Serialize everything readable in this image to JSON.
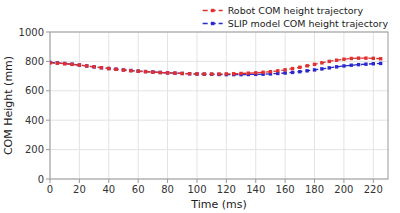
{
  "chart_data": {
    "type": "line",
    "xlabel": "Time (ms)",
    "ylabel": "COM Height (mm)",
    "x": [
      0,
      5,
      10,
      15,
      20,
      25,
      30,
      35,
      40,
      45,
      50,
      55,
      60,
      65,
      70,
      75,
      80,
      85,
      90,
      95,
      100,
      105,
      110,
      115,
      120,
      125,
      130,
      135,
      140,
      145,
      150,
      155,
      160,
      165,
      170,
      175,
      180,
      185,
      190,
      195,
      200,
      205,
      210,
      215,
      220,
      225
    ],
    "series": [
      {
        "name": "Robot COM height trajectory",
        "color": "#e03030",
        "marker": "square",
        "line_style": "dashed",
        "values": [
          790,
          788,
          784,
          780,
          775,
          769,
          763,
          757,
          751,
          746,
          741,
          737,
          733,
          730,
          727,
          724,
          722,
          720,
          718,
          716,
          715,
          714,
          714,
          714,
          715,
          716,
          718,
          720,
          722,
          726,
          730,
          736,
          743,
          751,
          760,
          770,
          780,
          790,
          800,
          808,
          815,
          820,
          822,
          822,
          821,
          818
        ]
      },
      {
        "name": "SLIP model COM height trajectory",
        "color": "#2828cc",
        "marker": "square",
        "line_style": "dashed",
        "values": [
          793,
          790,
          786,
          781,
          775,
          769,
          763,
          757,
          752,
          747,
          742,
          738,
          734,
          731,
          728,
          725,
          722,
          720,
          718,
          716,
          714,
          713,
          712,
          711,
          710,
          710,
          710,
          711,
          712,
          713,
          715,
          718,
          721,
          725,
          730,
          736,
          742,
          749,
          756,
          763,
          769,
          774,
          778,
          781,
          784,
          786
        ]
      }
    ],
    "xlim": [
      0,
      230
    ],
    "ylim": [
      0,
      1000
    ],
    "xticks": [
      0,
      20,
      40,
      60,
      80,
      100,
      120,
      140,
      160,
      180,
      200,
      220
    ],
    "yticks": [
      0,
      200,
      400,
      600,
      800,
      1000
    ],
    "grid": true,
    "legend": "upper right"
  }
}
